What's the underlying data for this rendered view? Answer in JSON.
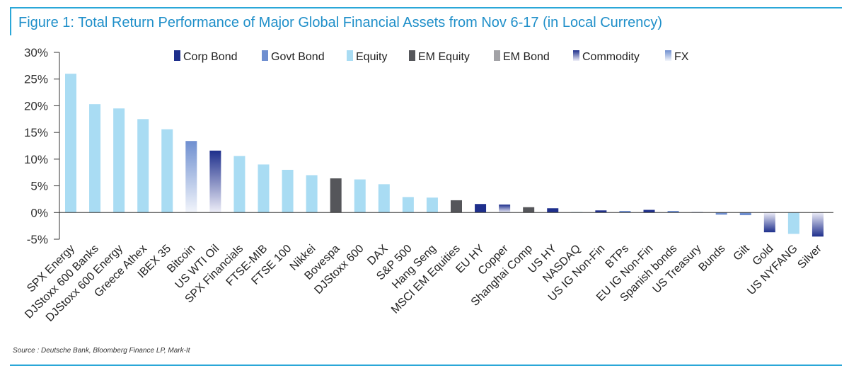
{
  "title": "Figure 1: Total Return Performance of Major Global Financial Assets from Nov 6-17 (in Local Currency)",
  "source": "Source : Deutsche Bank, Bloomberg Finance LP, Mark-It",
  "colors": {
    "frame": "#2aa7d8",
    "title": "#1f8fc9",
    "Corp Bond": "#1e2f8c",
    "Govt Bond": "#6f8fd0",
    "Equity": "#a9dcf3",
    "EM Equity": "#55565a",
    "EM Bond": "#a2a2a6",
    "Commodity": "#1e2f8c",
    "FX": "#6f8fd0"
  },
  "chart_data": {
    "type": "bar",
    "ylim": [
      -5,
      30
    ],
    "yticks": [
      -5,
      0,
      5,
      10,
      15,
      20,
      25,
      30
    ],
    "ytick_labels": [
      "-5%",
      "0%",
      "5%",
      "10%",
      "15%",
      "20%",
      "25%",
      "30%"
    ],
    "legend": [
      "Corp Bond",
      "Govt Bond",
      "Equity",
      "EM Equity",
      "EM Bond",
      "Commodity",
      "FX"
    ],
    "legend_position": "top",
    "grid": false,
    "categories": [
      "SPX Energy",
      "DJStoxx 600 Banks",
      "DJStoxx 600 Energy",
      "Greece Athex",
      "IBEX 35",
      "Bitcoin",
      "US WTI Oil",
      "SPX Financials",
      "FTSE-MIB",
      "FTSE 100",
      "Nikkei",
      "Bovespa",
      "DJStoxx 600",
      "DAX",
      "S&P 500",
      "Hang Seng",
      "MSCI EM Equities",
      "EU HY",
      "Copper",
      "Shanghai Comp",
      "US HY",
      "NASDAQ",
      "US IG Non-Fin",
      "BTPs",
      "EU IG Non-Fin",
      "Spanish bonds",
      "US Treasury",
      "Bunds",
      "Gilt",
      "Gold",
      "US NYFANG",
      "Silver"
    ],
    "values": [
      26.0,
      20.3,
      19.5,
      17.5,
      15.6,
      13.4,
      11.6,
      10.6,
      9.0,
      8.0,
      7.0,
      6.4,
      6.2,
      5.3,
      2.9,
      2.8,
      2.3,
      1.6,
      1.5,
      1.0,
      0.8,
      0.1,
      0.4,
      0.3,
      0.5,
      0.3,
      0.1,
      -0.4,
      -0.5,
      -3.7,
      -4.0,
      -4.5
    ],
    "asset_class": [
      "Equity",
      "Equity",
      "Equity",
      "Equity",
      "Equity",
      "FX",
      "Commodity",
      "Equity",
      "Equity",
      "Equity",
      "Equity",
      "EM Equity",
      "Equity",
      "Equity",
      "Equity",
      "Equity",
      "EM Equity",
      "Corp Bond",
      "Commodity",
      "EM Equity",
      "Corp Bond",
      "Equity",
      "Corp Bond",
      "Govt Bond",
      "Corp Bond",
      "Govt Bond",
      "Govt Bond",
      "Govt Bond",
      "Govt Bond",
      "Commodity",
      "Equity",
      "Commodity"
    ]
  }
}
